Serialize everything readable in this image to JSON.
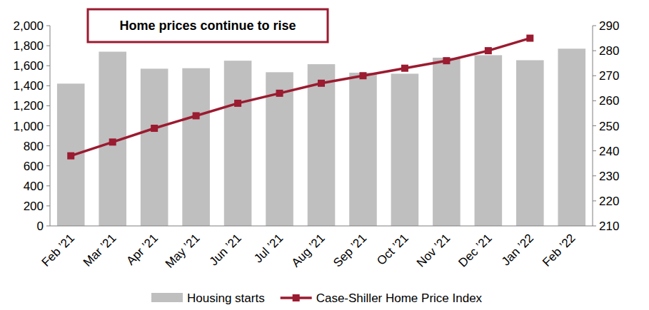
{
  "chart_data": {
    "type": "bar",
    "annotation": "Home prices continue to rise",
    "categories": [
      "Feb ’21",
      "Mar ’21",
      "Apr ’21",
      "May ’21",
      "Jun ’21",
      "Jul ’21",
      "Aug ’21",
      "Sep ’21",
      "Oct ’21",
      "Nov ’21",
      "Dec ’21",
      "Jan ’22",
      "Feb ’22"
    ],
    "series": [
      {
        "name": "Housing starts",
        "type": "bar",
        "color": "#bfbfbf",
        "values": [
          1421,
          1740,
          1570,
          1575,
          1650,
          1535,
          1615,
          1530,
          1520,
          1680,
          1705,
          1655,
          1770
        ]
      },
      {
        "name": "Case-Shiller Home Price Index",
        "type": "line",
        "axis": "y2",
        "color": "#9b1b30",
        "marker": "square",
        "values": [
          238,
          243.5,
          249,
          254,
          259,
          263,
          267,
          270,
          273,
          276,
          280,
          285,
          null
        ]
      }
    ],
    "ylim": [
      0,
      2000
    ],
    "yticks": [
      0,
      200,
      400,
      600,
      800,
      {
        "value": 1000,
        "label": "1,000"
      },
      {
        "value": 1200,
        "label": "1,200"
      },
      {
        "value": 1400,
        "label": "1,400"
      },
      {
        "value": 1600,
        "label": "1,600"
      },
      {
        "value": 1800,
        "label": "1,800"
      },
      {
        "value": 2000,
        "label": "2,000"
      }
    ],
    "y2lim": [
      210,
      290
    ],
    "y2ticks": [
      210,
      220,
      230,
      240,
      250,
      260,
      270,
      280,
      290
    ],
    "grid": false,
    "legend": "bottom"
  }
}
